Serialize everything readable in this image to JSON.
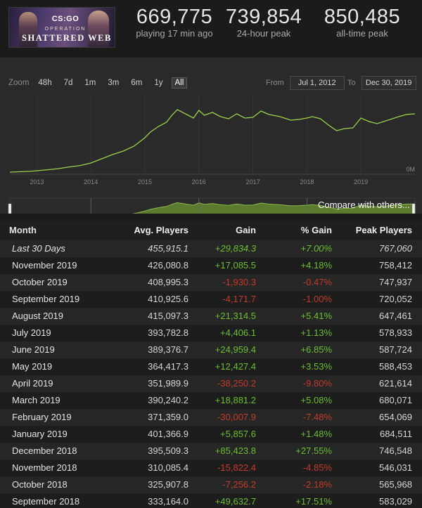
{
  "header": {
    "banner": {
      "logo": "CS:GO",
      "operation": "OPERATION",
      "title": "SHATTERED WEB"
    },
    "stats": [
      {
        "value": "669,775",
        "label": "playing 17 min ago"
      },
      {
        "value": "739,854",
        "label": "24-hour peak"
      },
      {
        "value": "850,485",
        "label": "all-time peak"
      }
    ]
  },
  "controls": {
    "zoom_label": "Zoom",
    "zoom_options": [
      "48h",
      "7d",
      "1m",
      "3m",
      "6m",
      "1y",
      "All"
    ],
    "zoom_active": "All",
    "from_label": "From",
    "from_value": "Jul 1, 2012",
    "to_label": "To",
    "to_value": "Dec 30, 2019",
    "compare_label": "Compare with others..."
  },
  "chart_data": {
    "type": "line",
    "x_ticks": [
      "2013",
      "2014",
      "2015",
      "2016",
      "2017",
      "2018",
      "2019"
    ],
    "navigator_ticks": [
      "2014",
      "2016",
      "2018"
    ],
    "y_tick_labels": [
      "0M"
    ],
    "x_range": [
      2012.5,
      2020.0
    ],
    "y_range_players": [
      0,
      560000
    ],
    "grid": true,
    "line_color": "#9ad34b",
    "series": [
      {
        "x": [
          2012.5,
          2012.7,
          2012.9,
          2013.0,
          2013.2,
          2013.4,
          2013.6,
          2013.8,
          2014.0,
          2014.2,
          2014.4,
          2014.6,
          2014.8,
          2015.0,
          2015.1,
          2015.25,
          2015.4,
          2015.5,
          2015.6,
          2015.75,
          2015.9,
          2016.0,
          2016.1,
          2016.25,
          2016.4,
          2016.55,
          2016.7,
          2016.85,
          2017.0,
          2017.15,
          2017.3,
          2017.5,
          2017.7,
          2017.85,
          2018.0,
          2018.1,
          2018.25,
          2018.4,
          2018.55,
          2018.7,
          2018.85,
          2019.0,
          2019.15,
          2019.3,
          2019.5,
          2019.7,
          2019.85,
          2020.0
        ],
        "y": [
          15000,
          18000,
          22000,
          25000,
          32000,
          40000,
          52000,
          62000,
          80000,
          110000,
          140000,
          165000,
          200000,
          260000,
          300000,
          340000,
          370000,
          420000,
          460000,
          430000,
          400000,
          455000,
          420000,
          440000,
          410000,
          395000,
          430000,
          400000,
          405000,
          450000,
          425000,
          410000,
          385000,
          390000,
          400000,
          410000,
          395000,
          350000,
          310000,
          325000,
          330000,
          400000,
          375000,
          360000,
          385000,
          410000,
          426000,
          430000
        ]
      }
    ]
  },
  "table": {
    "headers": {
      "month": "Month",
      "avg": "Avg. Players",
      "gain": "Gain",
      "pct": "% Gain",
      "peak": "Peak Players"
    },
    "rows": [
      {
        "month": "Last 30 Days",
        "avg": "455,915.1",
        "gain": "+29,834.3",
        "pct": "+7.00%",
        "peak": "767,060",
        "sign": "pos"
      },
      {
        "month": "November 2019",
        "avg": "426,080.8",
        "gain": "+17,085.5",
        "pct": "+4.18%",
        "peak": "758,412",
        "sign": "pos"
      },
      {
        "month": "October 2019",
        "avg": "408,995.3",
        "gain": "-1,930.3",
        "pct": "-0.47%",
        "peak": "747,937",
        "sign": "neg"
      },
      {
        "month": "September 2019",
        "avg": "410,925.6",
        "gain": "-4,171.7",
        "pct": "-1.00%",
        "peak": "720,052",
        "sign": "neg"
      },
      {
        "month": "August 2019",
        "avg": "415,097.3",
        "gain": "+21,314.5",
        "pct": "+5.41%",
        "peak": "647,461",
        "sign": "pos"
      },
      {
        "month": "July 2019",
        "avg": "393,782.8",
        "gain": "+4,406.1",
        "pct": "+1.13%",
        "peak": "578,933",
        "sign": "pos"
      },
      {
        "month": "June 2019",
        "avg": "389,376.7",
        "gain": "+24,959.4",
        "pct": "+6.85%",
        "peak": "587,724",
        "sign": "pos"
      },
      {
        "month": "May 2019",
        "avg": "364,417.3",
        "gain": "+12,427.4",
        "pct": "+3.53%",
        "peak": "588,453",
        "sign": "pos"
      },
      {
        "month": "April 2019",
        "avg": "351,989.9",
        "gain": "-38,250.2",
        "pct": "-9.80%",
        "peak": "621,614",
        "sign": "neg"
      },
      {
        "month": "March 2019",
        "avg": "390,240.2",
        "gain": "+18,881.2",
        "pct": "+5.08%",
        "peak": "680,071",
        "sign": "pos"
      },
      {
        "month": "February 2019",
        "avg": "371,359.0",
        "gain": "-30,007.9",
        "pct": "-7.48%",
        "peak": "654,069",
        "sign": "neg"
      },
      {
        "month": "January 2019",
        "avg": "401,366.9",
        "gain": "+5,857.6",
        "pct": "+1.48%",
        "peak": "684,511",
        "sign": "pos"
      },
      {
        "month": "December 2018",
        "avg": "395,509.3",
        "gain": "+85,423.8",
        "pct": "+27.55%",
        "peak": "746,548",
        "sign": "pos"
      },
      {
        "month": "November 2018",
        "avg": "310,085.4",
        "gain": "-15,822.4",
        "pct": "-4.85%",
        "peak": "546,031",
        "sign": "neg"
      },
      {
        "month": "October 2018",
        "avg": "325,907.8",
        "gain": "-7,256.2",
        "pct": "-2.18%",
        "peak": "565,968",
        "sign": "neg"
      },
      {
        "month": "September 2018",
        "avg": "333,164.0",
        "gain": "+49,632.7",
        "pct": "+17.51%",
        "peak": "583,029",
        "sign": "pos"
      }
    ]
  }
}
